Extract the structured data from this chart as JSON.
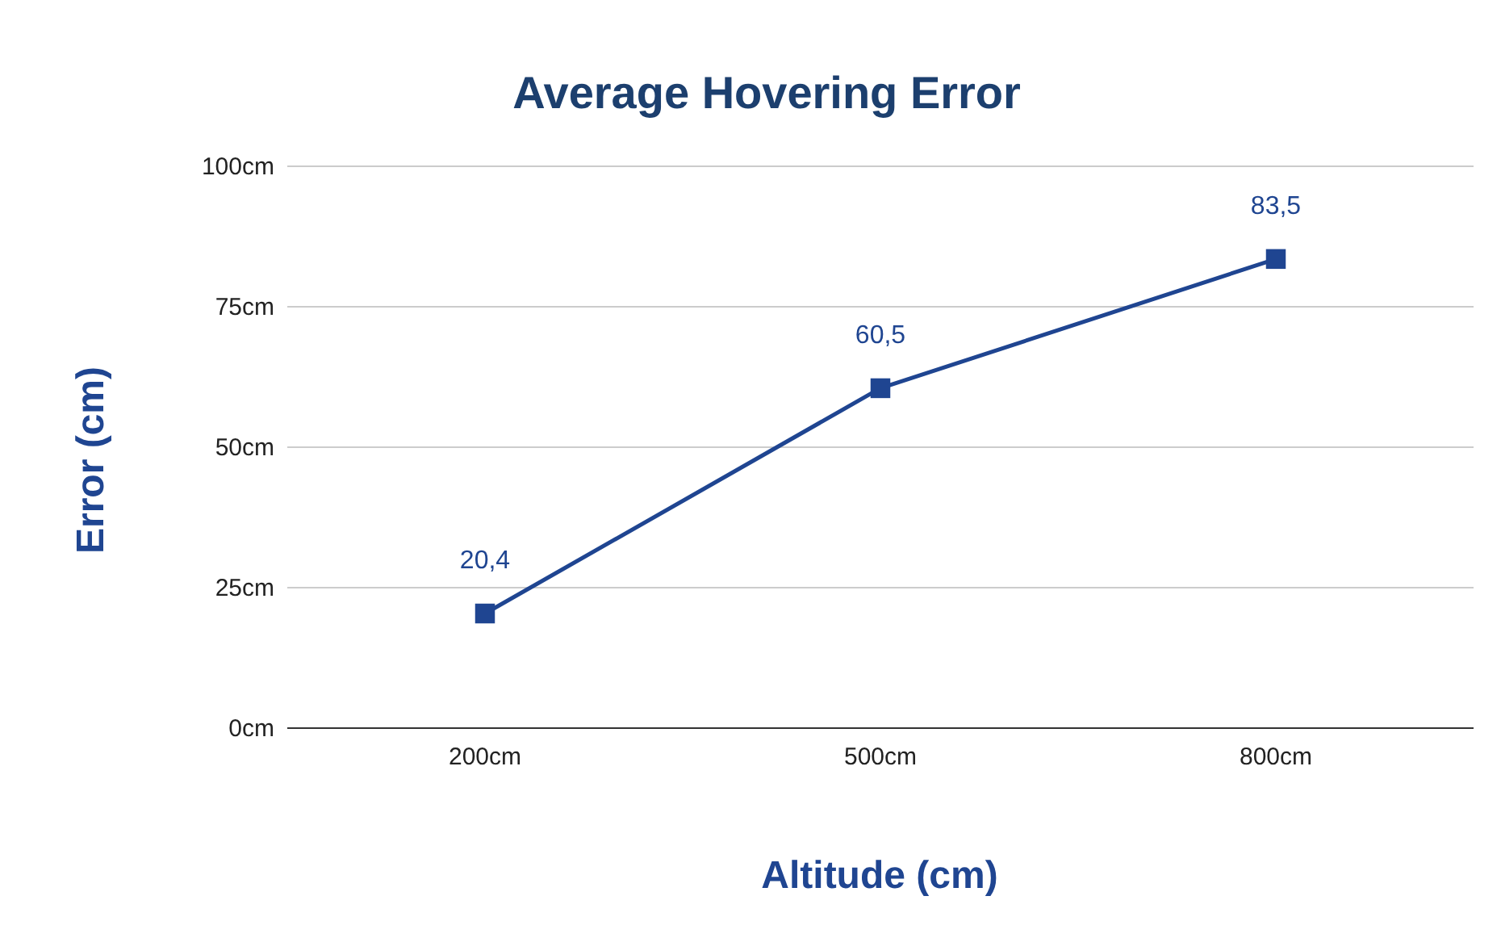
{
  "chart_data": {
    "type": "line",
    "title": "Average Hovering Error",
    "xlabel": "Altitude (cm)",
    "ylabel": "Error (cm)",
    "categories": [
      "200cm",
      "500cm",
      "800cm"
    ],
    "series": [
      {
        "color": "#1f4591",
        "values": [
          20.4,
          60.5,
          83.5
        ],
        "value_labels": [
          "20,4",
          "60,5",
          "83,5"
        ]
      }
    ],
    "ylim": [
      0,
      100
    ],
    "yticks": [
      {
        "value": 0,
        "label": "0cm"
      },
      {
        "value": 25,
        "label": "25cm"
      },
      {
        "value": 50,
        "label": "50cm"
      },
      {
        "value": 75,
        "label": "75cm"
      },
      {
        "value": 100,
        "label": "100cm"
      }
    ],
    "grid": "y",
    "marker": "square",
    "line_style": "solid"
  }
}
